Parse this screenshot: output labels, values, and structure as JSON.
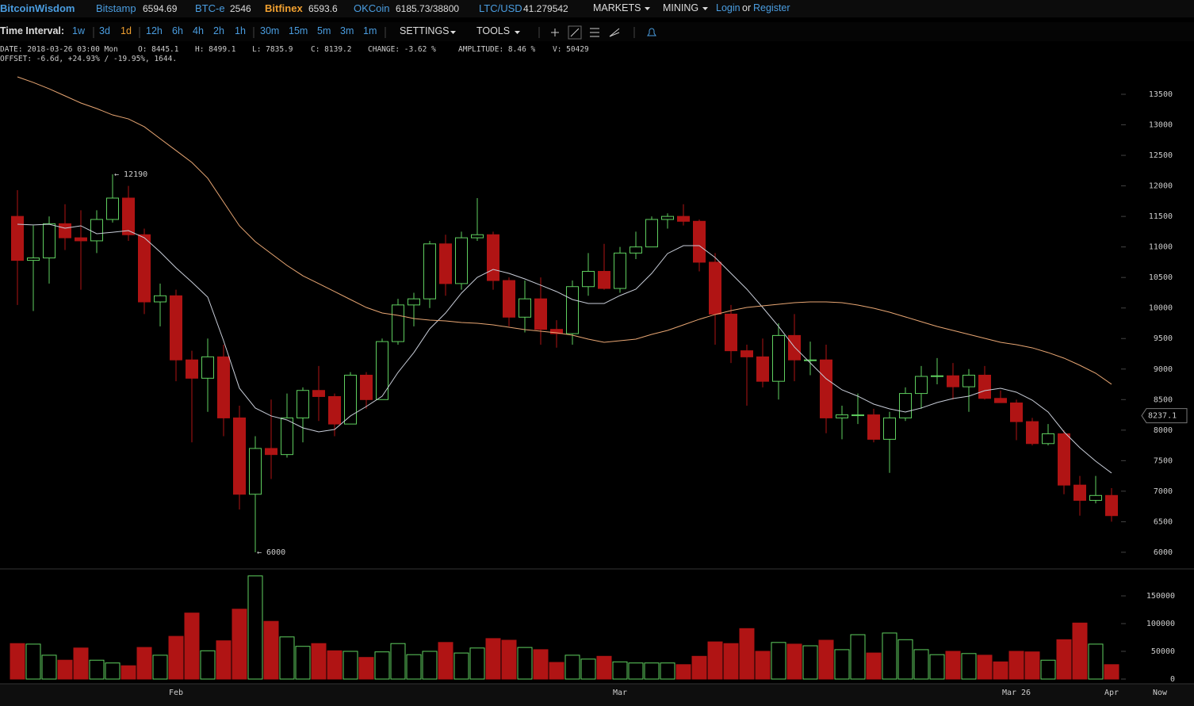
{
  "header": {
    "brand": "BitcoinWisdom",
    "tickers": [
      {
        "name": "Bitstamp",
        "price": "6594.69",
        "color": "#4a9de0"
      },
      {
        "name": "BTC-e",
        "price": "2546",
        "color": "#4a9de0"
      },
      {
        "name": "Bitfinex",
        "price": "6593.6",
        "color": "#f0a030"
      },
      {
        "name": "OKCoin",
        "price": "6185.73/38800",
        "color": "#4a9de0"
      },
      {
        "name": "LTC/USD",
        "price": "41.279542",
        "color": "#4a9de0"
      }
    ],
    "menus": [
      "MARKETS",
      "MINING"
    ],
    "login": "Login",
    "or": "or",
    "register": "Register"
  },
  "toolbar": {
    "interval_label": "Time Interval:",
    "intervals": [
      "1w",
      "3d",
      "1d",
      "12h",
      "6h",
      "4h",
      "2h",
      "1h",
      "30m",
      "15m",
      "5m",
      "3m",
      "1m"
    ],
    "active_interval": "1d",
    "settings": "SETTINGS",
    "tools": "TOOLS"
  },
  "info": {
    "line1": [
      "DATE: 2018-03-26 03:00 Mon",
      "O: 8445.1",
      "H: 8499.1",
      "L: 7835.9",
      "C: 8139.2",
      "CHANGE: -3.62 %",
      "AMPLITUDE: 8.46 %",
      "V: 50429"
    ],
    "line2": "OFFSET: -6.6d, +24.93% / -19.95%, 1644."
  },
  "chart_data": {
    "type": "candlestick",
    "categories": [
      null,
      null,
      null,
      null,
      null,
      null,
      null,
      null,
      null,
      null,
      "Feb",
      null,
      null,
      null,
      null,
      null,
      null,
      null,
      null,
      null,
      null,
      null,
      null,
      null,
      null,
      null,
      null,
      null,
      null,
      null,
      null,
      null,
      null,
      null,
      null,
      null,
      null,
      null,
      "Mar",
      null,
      null,
      null,
      null,
      null,
      null,
      null,
      null,
      null,
      null,
      null,
      null,
      null,
      null,
      null,
      null,
      null,
      null,
      null,
      null,
      null,
      null,
      null,
      null,
      "Mar 26",
      null,
      null,
      null,
      null,
      null,
      "Apr"
    ],
    "now_label": "Now",
    "open": [
      11500,
      10780,
      10820,
      11380,
      11150,
      11100,
      11450,
      11800,
      11200,
      10100,
      10200,
      9150,
      8850,
      9200,
      8200,
      6950,
      7700,
      7600,
      8200,
      8650,
      8550,
      8100,
      8900,
      8500,
      9450,
      10050,
      10150,
      11050,
      10400,
      11150,
      11200,
      10450,
      9850,
      10150,
      9650,
      9580,
      10350,
      10600,
      10320,
      10900,
      11000,
      11450,
      11500,
      11420,
      10750,
      9900,
      9300,
      9200,
      8800,
      9550,
      9150,
      9150,
      8200,
      8250,
      8250,
      7850,
      8200,
      8600,
      8880,
      8890,
      8710,
      8900,
      8520,
      8445.1,
      8139.2,
      7780,
      7940,
      7100,
      6850,
      6930
    ],
    "high": [
      11930,
      11350,
      11500,
      11700,
      11600,
      11600,
      12190,
      12000,
      11300,
      10400,
      10300,
      9300,
      9500,
      9400,
      8400,
      7900,
      8500,
      8600,
      8700,
      9050,
      8600,
      8950,
      8950,
      9500,
      10150,
      10250,
      11100,
      11200,
      11250,
      11800,
      11250,
      10500,
      10450,
      10500,
      9800,
      10450,
      10900,
      11050,
      11000,
      11250,
      11500,
      11550,
      11700,
      11450,
      10900,
      10050,
      9400,
      9500,
      9750,
      9900,
      9450,
      9400,
      8400,
      8600,
      8350,
      8300,
      8700,
      9050,
      9180,
      9100,
      9000,
      9050,
      8650,
      8499.1,
      8200,
      8100,
      8000,
      7250,
      7250,
      7050
    ],
    "low": [
      10050,
      9950,
      10400,
      10950,
      10300,
      10900,
      11400,
      11100,
      9900,
      9700,
      8800,
      7800,
      8300,
      7900,
      6700,
      6000,
      7200,
      7550,
      7800,
      8150,
      7900,
      8100,
      8350,
      8500,
      9400,
      9700,
      10000,
      10200,
      10300,
      11100,
      10300,
      9700,
      9600,
      9400,
      9350,
      9400,
      10200,
      10300,
      10250,
      10800,
      11000,
      11300,
      11350,
      10600,
      9400,
      9100,
      8400,
      8700,
      8500,
      8800,
      8900,
      7950,
      7850,
      8100,
      7800,
      7300,
      8150,
      8350,
      8750,
      8500,
      8300,
      8500,
      8450,
      7835.9,
      7750,
      7750,
      6950,
      6600,
      6800,
      6500
    ],
    "close": [
      10780,
      10820,
      11380,
      11150,
      11100,
      11450,
      11800,
      11200,
      10100,
      10200,
      9150,
      8850,
      9200,
      8200,
      6950,
      7700,
      7600,
      8200,
      8650,
      8550,
      8100,
      8900,
      8500,
      9450,
      10050,
      10150,
      11050,
      10400,
      11150,
      11200,
      10450,
      9850,
      10150,
      9650,
      9580,
      10350,
      10600,
      10320,
      10900,
      11000,
      11450,
      11500,
      11420,
      10750,
      9900,
      9300,
      9200,
      8800,
      9550,
      9150,
      9150,
      8200,
      8250,
      8250,
      7850,
      8200,
      8600,
      8880,
      8890,
      8710,
      8900,
      8520,
      8450,
      8139.2,
      7780,
      7940,
      7100,
      6850,
      6930,
      6600
    ],
    "up_color": "#5fcf5f",
    "down_color": "#b01414",
    "series": [
      {
        "color": "#c8cdd8",
        "values": [
          11372,
          11360,
          11372,
          11307,
          11346,
          11216,
          11240,
          11268,
          11151,
          10918,
          10658,
          10425,
          10178,
          9464,
          8686,
          8362,
          8232,
          8167,
          8037,
          7972,
          8011,
          8232,
          8387,
          8556,
          8945,
          9270,
          9659,
          9918,
          10243,
          10502,
          10632,
          10567,
          10476,
          10373,
          10269,
          10139,
          10074,
          10074,
          10204,
          10308,
          10567,
          10892,
          11021,
          11021,
          10827,
          10567,
          10308,
          10009,
          9698,
          9361,
          9101,
          8842,
          8660,
          8556,
          8426,
          8348,
          8297,
          8362,
          8452,
          8517,
          8556,
          8647,
          8686,
          8621,
          8491,
          8297,
          7972,
          7713,
          7492,
          7298
        ]
      },
      {
        "color": "#e8a673",
        "values": [
          13785,
          13694,
          13590,
          13474,
          13357,
          13266,
          13162,
          13097,
          12968,
          12773,
          12579,
          12384,
          12125,
          11735,
          11346,
          11086,
          10892,
          10697,
          10528,
          10399,
          10269,
          10139,
          10009,
          9918,
          9880,
          9828,
          9802,
          9789,
          9763,
          9750,
          9724,
          9685,
          9646,
          9620,
          9594,
          9555,
          9490,
          9438,
          9464,
          9490,
          9568,
          9633,
          9724,
          9815,
          9893,
          9957,
          10009,
          10035,
          10061,
          10087,
          10100,
          10100,
          10087,
          10048,
          9996,
          9931,
          9854,
          9776,
          9698,
          9633,
          9568,
          9503,
          9438,
          9399,
          9348,
          9270,
          9179,
          9062,
          8932,
          8751
        ]
      }
    ],
    "ylim": [
      5727,
      13941
    ],
    "yticks": [
      6000,
      6500,
      7000,
      7500,
      8000,
      8500,
      9000,
      9500,
      10000,
      10500,
      11000,
      11500,
      12000,
      12500,
      13000,
      13500
    ],
    "annotations": [
      {
        "text": "← 12190",
        "value": 12190
      },
      {
        "text": "← 6000",
        "value": 6000
      }
    ],
    "last_price": 8237.1,
    "volume": {
      "values": [
        64000,
        63000,
        43000,
        34000,
        56000,
        34000,
        29000,
        24000,
        57000,
        43000,
        77000,
        119000,
        51000,
        69000,
        126000,
        186000,
        104000,
        76000,
        59000,
        64000,
        51000,
        50000,
        39000,
        49000,
        64000,
        44000,
        50000,
        66000,
        47000,
        56000,
        73000,
        70000,
        57000,
        53000,
        30000,
        43000,
        36000,
        41000,
        31000,
        29000,
        29000,
        29000,
        26000,
        41000,
        67000,
        64000,
        91000,
        50000,
        66000,
        63000,
        60000,
        70000,
        53000,
        80000,
        47000,
        83000,
        71000,
        53000,
        44000,
        50000,
        46000,
        43000,
        31000,
        50000,
        49000,
        34000,
        71000,
        101000,
        63000,
        26000
      ],
      "ylim": [
        0,
        198600
      ],
      "yticks": [
        0,
        50000,
        100000,
        150000
      ]
    }
  }
}
